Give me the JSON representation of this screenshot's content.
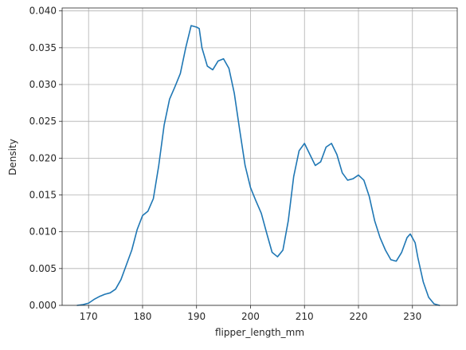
{
  "chart_data": {
    "type": "line",
    "title": "",
    "xlabel": "flipper_length_mm",
    "ylabel": "Density",
    "xlim": [
      165.1,
      238.3
    ],
    "ylim": [
      0,
      0.0404
    ],
    "grid": true,
    "line_color": "#1f77b4",
    "grid_color": "#b0b0b0",
    "x_ticks": [
      {
        "value": 170,
        "label": "170"
      },
      {
        "value": 180,
        "label": "180"
      },
      {
        "value": 190,
        "label": "190"
      },
      {
        "value": 200,
        "label": "200"
      },
      {
        "value": 210,
        "label": "210"
      },
      {
        "value": 220,
        "label": "220"
      },
      {
        "value": 230,
        "label": "230"
      }
    ],
    "y_ticks": [
      {
        "value": 0.0,
        "label": "0.000"
      },
      {
        "value": 0.005,
        "label": "0.005"
      },
      {
        "value": 0.01,
        "label": "0.010"
      },
      {
        "value": 0.015,
        "label": "0.015"
      },
      {
        "value": 0.02,
        "label": "0.020"
      },
      {
        "value": 0.025,
        "label": "0.025"
      },
      {
        "value": 0.03,
        "label": "0.030"
      },
      {
        "value": 0.035,
        "label": "0.035"
      },
      {
        "value": 0.04,
        "label": "0.040"
      }
    ],
    "series": [
      {
        "x": [
          167.9,
          169.0,
          170.0,
          171.0,
          172.0,
          173.0,
          174.0,
          175.0,
          176.0,
          177.0,
          178.0,
          179.0,
          180.0,
          181.0,
          182.0,
          183.0,
          184.0,
          185.0,
          186.0,
          187.0,
          188.0,
          189.0,
          190.0,
          190.5,
          191.0,
          192.0,
          193.0,
          194.0,
          195.0,
          196.0,
          197.0,
          198.0,
          199.0,
          200.0,
          201.0,
          202.0,
          203.0,
          204.0,
          205.0,
          206.0,
          207.0,
          208.0,
          209.0,
          210.0,
          211.0,
          212.0,
          213.0,
          214.0,
          215.0,
          216.0,
          217.0,
          218.0,
          219.0,
          220.0,
          221.0,
          222.0,
          223.0,
          224.0,
          225.0,
          226.0,
          227.0,
          228.0,
          229.0,
          229.6,
          230.5,
          231.0,
          232.0,
          233.0,
          234.0,
          235.0
        ],
        "y": [
          0.0,
          0.0001,
          0.0003,
          0.0008,
          0.0012,
          0.0015,
          0.0017,
          0.0022,
          0.0035,
          0.0055,
          0.0075,
          0.0103,
          0.0122,
          0.0128,
          0.0145,
          0.019,
          0.0245,
          0.028,
          0.0297,
          0.0315,
          0.035,
          0.038,
          0.0378,
          0.0376,
          0.035,
          0.0325,
          0.032,
          0.0332,
          0.0335,
          0.0322,
          0.0288,
          0.0238,
          0.019,
          0.016,
          0.0142,
          0.0125,
          0.0098,
          0.0072,
          0.0066,
          0.0075,
          0.0115,
          0.0175,
          0.021,
          0.022,
          0.0205,
          0.019,
          0.0195,
          0.0215,
          0.022,
          0.0205,
          0.018,
          0.017,
          0.0172,
          0.0177,
          0.017,
          0.0148,
          0.0115,
          0.0092,
          0.0075,
          0.0062,
          0.006,
          0.0072,
          0.0092,
          0.0097,
          0.0085,
          0.0065,
          0.0032,
          0.0011,
          0.0002,
          0.0
        ]
      }
    ]
  }
}
